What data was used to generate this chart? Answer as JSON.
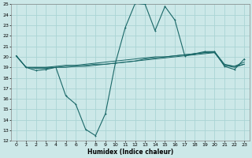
{
  "title": "",
  "xlabel": "Humidex (Indice chaleur)",
  "ylabel": "",
  "bg_color": "#cce8e8",
  "grid_color": "#aad4d4",
  "line_color": "#1a6868",
  "xlim": [
    -0.5,
    23.5
  ],
  "ylim": [
    12,
    25
  ],
  "xticks": [
    0,
    1,
    2,
    3,
    4,
    5,
    6,
    7,
    8,
    9,
    10,
    11,
    12,
    13,
    14,
    15,
    16,
    17,
    18,
    19,
    20,
    21,
    22,
    23
  ],
  "yticks": [
    12,
    13,
    14,
    15,
    16,
    17,
    18,
    19,
    20,
    21,
    22,
    23,
    24,
    25
  ],
  "line1_y": [
    20.1,
    19.0,
    18.7,
    18.8,
    19.0,
    16.3,
    15.5,
    13.1,
    12.5,
    14.6,
    19.4,
    22.8,
    25.1,
    25.0,
    22.5,
    24.8,
    23.5,
    20.1,
    20.3,
    20.5,
    20.5,
    19.1,
    18.8,
    19.8
  ],
  "line2_y": [
    20.1,
    19.0,
    19.0,
    19.0,
    19.1,
    19.2,
    19.2,
    19.3,
    19.4,
    19.5,
    19.6,
    19.7,
    19.8,
    19.9,
    20.0,
    20.0,
    20.1,
    20.2,
    20.3,
    20.4,
    20.5,
    19.3,
    19.1,
    19.5
  ],
  "line3_y": [
    20.1,
    19.0,
    19.0,
    19.0,
    19.0,
    19.1,
    19.1,
    19.2,
    19.3,
    19.3,
    19.4,
    19.5,
    19.6,
    19.7,
    19.8,
    19.9,
    20.0,
    20.1,
    20.2,
    20.3,
    20.4,
    19.2,
    19.0,
    19.3
  ],
  "line4_y": [
    20.1,
    19.0,
    18.9,
    18.9,
    19.0,
    19.0,
    19.1,
    19.1,
    19.2,
    19.3,
    19.4,
    19.5,
    19.6,
    19.8,
    19.9,
    20.0,
    20.1,
    20.2,
    20.3,
    20.4,
    20.4,
    19.2,
    19.1,
    19.3
  ]
}
